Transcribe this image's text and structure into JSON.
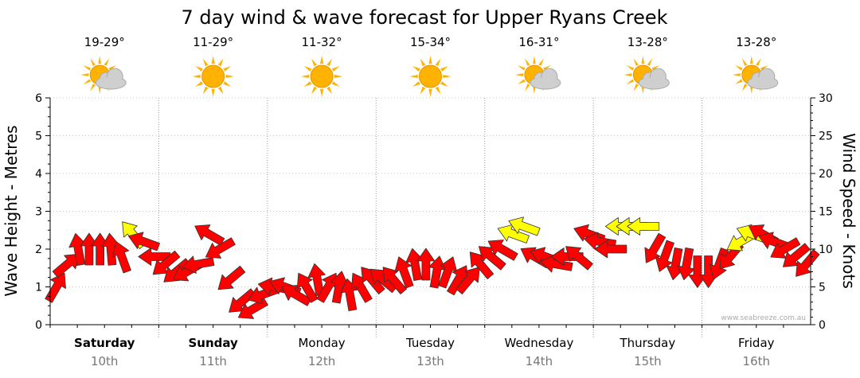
{
  "chart_data": {
    "type": "line",
    "title": "7 day wind & wave forecast for Upper Ryans Creek",
    "ylabel_left": "Wave Height - Metres",
    "ylabel_right": "Wind Speed - Knots",
    "ylim_left": [
      0,
      6
    ],
    "ylim_right": [
      0,
      30
    ],
    "yticks_left": [
      "0",
      "1",
      "2",
      "3",
      "4",
      "5",
      "6"
    ],
    "yticks_right": [
      "0",
      "5",
      "10",
      "15",
      "20",
      "25",
      "30"
    ],
    "grid": true,
    "watermark": "www.seabreeze.com.au",
    "days": [
      {
        "name": "Saturday",
        "date": "10th",
        "temp": "19-29°",
        "weather": "partly-cloudy",
        "bold": true
      },
      {
        "name": "Sunday",
        "date": "11th",
        "temp": "11-29°",
        "weather": "sunny",
        "bold": true
      },
      {
        "name": "Monday",
        "date": "12th",
        "temp": "11-32°",
        "weather": "sunny",
        "bold": false
      },
      {
        "name": "Tuesday",
        "date": "13th",
        "temp": "15-34°",
        "weather": "sunny",
        "bold": false
      },
      {
        "name": "Wednesday",
        "date": "14th",
        "temp": "16-31°",
        "weather": "partly-cloudy",
        "bold": false
      },
      {
        "name": "Thursday",
        "date": "15th",
        "temp": "13-28°",
        "weather": "partly-cloudy",
        "bold": false
      },
      {
        "name": "Friday",
        "date": "16th",
        "temp": "13-28°",
        "weather": "partly-cloudy",
        "bold": false
      }
    ],
    "wind_series": {
      "name": "Wind Speed",
      "unit": "knots",
      "x_day": [
        0.0,
        0.1,
        0.2,
        0.3,
        0.4,
        0.5,
        0.6,
        0.7,
        0.8,
        0.9,
        1.0,
        1.1,
        1.2,
        1.3,
        1.4,
        1.5,
        1.6,
        1.7,
        1.8,
        1.9,
        2.0,
        2.1,
        2.2,
        2.3,
        2.4,
        2.5,
        2.6,
        2.7,
        2.8,
        2.9,
        3.0,
        3.1,
        3.2,
        3.3,
        3.4,
        3.5,
        3.6,
        3.7,
        3.8,
        3.9,
        4.0,
        4.1,
        4.2,
        4.3,
        4.4,
        4.5,
        4.6,
        4.7,
        4.8,
        4.9,
        5.0,
        5.1,
        5.2,
        5.3,
        5.4,
        5.5,
        5.6,
        5.7,
        5.8,
        5.9,
        6.0,
        6.1,
        6.2,
        6.3,
        6.4,
        6.5,
        6.6,
        6.7,
        6.8,
        6.9
      ],
      "values": [
        5,
        8,
        10,
        10,
        10,
        10,
        9,
        12,
        11,
        9,
        8,
        7,
        7,
        8,
        12,
        10,
        6,
        3,
        2,
        4,
        5,
        5,
        4,
        5,
        6,
        5,
        5,
        4,
        5,
        6,
        6,
        6,
        7,
        8,
        8,
        7,
        7,
        6,
        6,
        8,
        9,
        10,
        12,
        13,
        9,
        9,
        8,
        9,
        9,
        12,
        11,
        10,
        13,
        13,
        13,
        10,
        9,
        8,
        8,
        7,
        7,
        8,
        9,
        11,
        12,
        12,
        11,
        10,
        9,
        8
      ],
      "direction_deg": [
        300,
        320,
        260,
        270,
        270,
        265,
        250,
        230,
        200,
        180,
        140,
        140,
        150,
        170,
        210,
        150,
        140,
        140,
        150,
        160,
        190,
        200,
        210,
        240,
        260,
        300,
        280,
        260,
        240,
        230,
        220,
        230,
        250,
        260,
        270,
        280,
        290,
        300,
        310,
        230,
        220,
        210,
        200,
        200,
        210,
        200,
        190,
        180,
        220,
        200,
        190,
        180,
        180,
        180,
        180,
        120,
        110,
        100,
        100,
        90,
        90,
        110,
        130,
        150,
        200,
        210,
        200,
        150,
        140,
        130
      ],
      "strong": [
        false,
        false,
        false,
        false,
        false,
        false,
        false,
        true,
        false,
        false,
        false,
        false,
        false,
        false,
        false,
        false,
        false,
        false,
        false,
        false,
        false,
        false,
        false,
        false,
        false,
        false,
        false,
        false,
        false,
        false,
        false,
        false,
        false,
        false,
        false,
        false,
        false,
        false,
        false,
        false,
        false,
        false,
        true,
        true,
        false,
        false,
        false,
        false,
        false,
        false,
        false,
        false,
        true,
        true,
        true,
        false,
        false,
        false,
        false,
        false,
        false,
        false,
        false,
        true,
        true,
        false,
        false,
        false,
        false,
        false
      ]
    }
  },
  "colors": {
    "arrow_normal": "#ff0000",
    "arrow_strong": "#ffff00",
    "arrow_outline": "#333333",
    "axis": "#000000",
    "sun": "#ffb300",
    "cloud": "#cfcfcf"
  }
}
